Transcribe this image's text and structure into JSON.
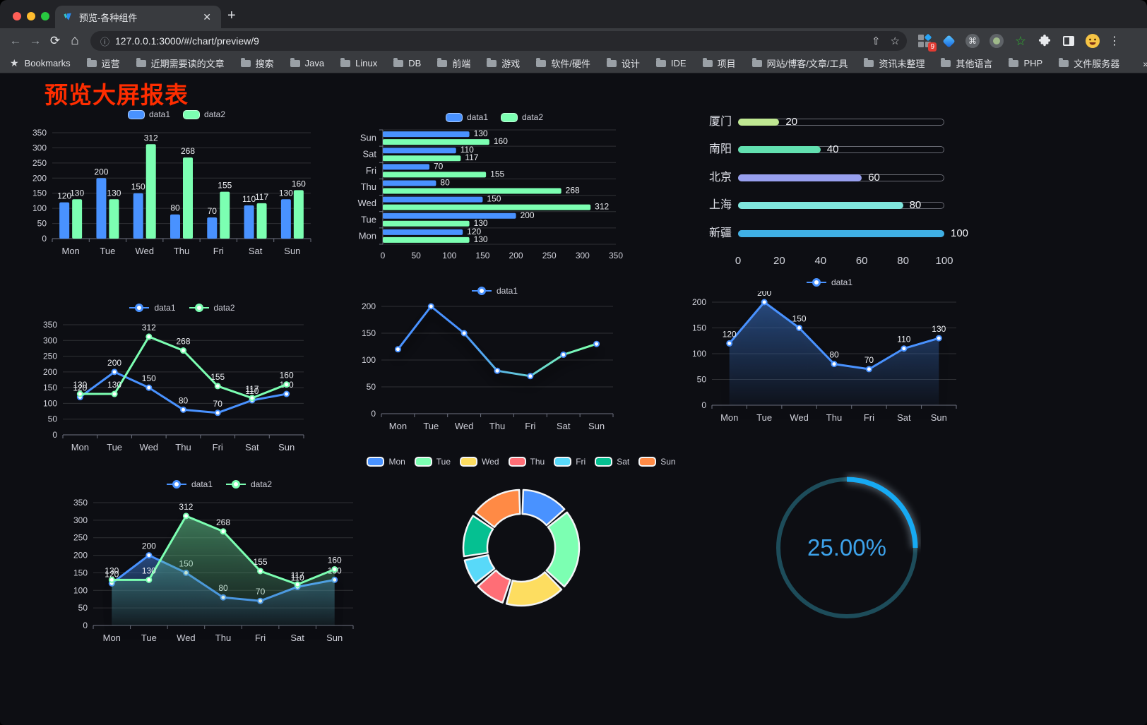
{
  "browser": {
    "tab_title": "预览-各种组件",
    "close_glyph": "✕",
    "newtab_glyph": "+",
    "back_glyph": "←",
    "forward_glyph": "→",
    "reload_glyph": "⟳",
    "home_glyph": "⌂",
    "info_glyph": "ⓘ",
    "url": "127.0.0.1:3000/#/chart/preview/9",
    "share_glyph": "⇧",
    "star_glyph": "☆",
    "extension_badge": "9",
    "command_glyph": "⌘",
    "green_star_glyph": "☆",
    "puzzle_glyph": "⚹",
    "avatar_glyph": "😄",
    "kebab_glyph": "⋮",
    "bookmarks_label": "Bookmarks",
    "bookmarks": [
      "运营",
      "近期需要读的文章",
      "搜索",
      "Java",
      "Linux",
      "DB",
      "前端",
      "游戏",
      "软件/硬件",
      "设计",
      "IDE",
      "项目",
      "网站/博客/文章/工具",
      "资讯未整理",
      "其他语言",
      "PHP",
      "文件服务器"
    ],
    "bookmarks_overflow": "»",
    "other_bookmarks": "其他书签"
  },
  "page": {
    "title": "预览大屏报表",
    "title_color": "#ff2d00",
    "background": "#0d0e13"
  },
  "palette": {
    "data1_blue": "#4992ff",
    "data2_green": "#7cffb2",
    "axis_text": "#d0d1da",
    "grid_line": "rgba(255,255,255,0.14)",
    "axis_line": "#6e7280",
    "value_label": "#eceef2"
  },
  "chart_data": [
    {
      "type": "bar",
      "title": "grouped vertical bar",
      "categories": [
        "Mon",
        "Tue",
        "Wed",
        "Thu",
        "Fri",
        "Sat",
        "Sun"
      ],
      "series": [
        {
          "name": "data1",
          "color": "#4992ff",
          "values": [
            120,
            200,
            150,
            80,
            70,
            110,
            130
          ]
        },
        {
          "name": "data2",
          "color": "#7cffb2",
          "values": [
            130,
            130,
            312,
            268,
            155,
            117,
            160
          ]
        }
      ],
      "ylim": [
        0,
        350
      ],
      "ystep": 50,
      "grid": true,
      "legend_icon": "roundRect"
    },
    {
      "type": "bar-horizontal",
      "title": "grouped horizontal bar",
      "categories": [
        "Sun",
        "Sat",
        "Fri",
        "Thu",
        "Wed",
        "Tue",
        "Mon"
      ],
      "series": [
        {
          "name": "data1",
          "color": "#4992ff",
          "values": [
            130,
            110,
            70,
            80,
            150,
            200,
            120
          ]
        },
        {
          "name": "data2",
          "color": "#7cffb2",
          "values": [
            160,
            117,
            155,
            268,
            312,
            130,
            130
          ]
        }
      ],
      "xlim": [
        0,
        350
      ],
      "xstep": 50,
      "grid": true,
      "legend_icon": "roundRect"
    },
    {
      "type": "progress",
      "title": "city progress bars",
      "max": 100,
      "xticks": [
        0,
        20,
        40,
        60,
        80,
        100
      ],
      "items": [
        {
          "label": "厦门",
          "value": 20,
          "color": "#bfe792"
        },
        {
          "label": "南阳",
          "value": 40,
          "color": "#62e0b0"
        },
        {
          "label": "北京",
          "value": 60,
          "color": "#979fee"
        },
        {
          "label": "上海",
          "value": 80,
          "color": "#7fe7de"
        },
        {
          "label": "新疆",
          "value": 100,
          "color": "#3fafe4"
        }
      ]
    },
    {
      "type": "line",
      "title": "two-series line",
      "categories": [
        "Mon",
        "Tue",
        "Wed",
        "Thu",
        "Fri",
        "Sat",
        "Sun"
      ],
      "series": [
        {
          "name": "data1",
          "color": "#4992ff",
          "values": [
            120,
            200,
            150,
            80,
            70,
            110,
            130
          ],
          "labels": true
        },
        {
          "name": "data2",
          "color": "#7cffb2",
          "values": [
            130,
            130,
            312,
            268,
            155,
            117,
            160
          ],
          "labels": true
        }
      ],
      "ylim": [
        0,
        350
      ],
      "ystep": 50,
      "legend_icon": "circle-line"
    },
    {
      "type": "line",
      "title": "gradient line with shadow",
      "categories": [
        "Mon",
        "Tue",
        "Wed",
        "Thu",
        "Fri",
        "Sat",
        "Sun"
      ],
      "series": [
        {
          "name": "data1",
          "color": "#4992ff",
          "gradient": [
            "#4992ff",
            "#7cffb2"
          ],
          "values": [
            120,
            200,
            150,
            80,
            70,
            110,
            130
          ],
          "labels": false,
          "shadow": true
        }
      ],
      "ylim": [
        0,
        200
      ],
      "ystep": 50,
      "legend_icon": "circle-line"
    },
    {
      "type": "line",
      "title": "blue area line",
      "categories": [
        "Mon",
        "Tue",
        "Wed",
        "Thu",
        "Fri",
        "Sat",
        "Sun"
      ],
      "series": [
        {
          "name": "data1",
          "color": "#4992ff",
          "values": [
            120,
            200,
            150,
            80,
            70,
            110,
            130
          ],
          "labels": true,
          "area": true,
          "shadow": true
        }
      ],
      "ylim": [
        0,
        200
      ],
      "ystep": 50,
      "legend_icon": "circle-line"
    },
    {
      "type": "line",
      "title": "two-series area line",
      "categories": [
        "Mon",
        "Tue",
        "Wed",
        "Thu",
        "Fri",
        "Sat",
        "Sun"
      ],
      "series": [
        {
          "name": "data1",
          "color": "#4992ff",
          "values": [
            120,
            200,
            150,
            80,
            70,
            110,
            130
          ],
          "labels": true,
          "area": true,
          "shadow": true
        },
        {
          "name": "data2",
          "color": "#7cffb2",
          "values": [
            130,
            130,
            312,
            268,
            155,
            117,
            160
          ],
          "labels": true,
          "area": true,
          "shadow": true
        }
      ],
      "ylim": [
        0,
        350
      ],
      "ystep": 50,
      "legend_icon": "circle-line"
    },
    {
      "type": "pie",
      "title": "weekday donut",
      "categories": [
        "Mon",
        "Tue",
        "Wed",
        "Thu",
        "Fri",
        "Sat",
        "Sun"
      ],
      "values": [
        120,
        200,
        150,
        80,
        70,
        110,
        130
      ],
      "colors": [
        "#4992ff",
        "#7cffb2",
        "#fddd60",
        "#ff6e76",
        "#58d9f9",
        "#05c091",
        "#ff8a45"
      ],
      "inner_radius": 48,
      "outer_radius": 82,
      "legend_icon": "pieRect"
    },
    {
      "type": "gauge",
      "title": "percent ring",
      "value": 25,
      "label": "25.00%",
      "progress_color": "#17aaf3",
      "track_color": "#1d4c5a",
      "text_color": "#3da2ea"
    }
  ]
}
